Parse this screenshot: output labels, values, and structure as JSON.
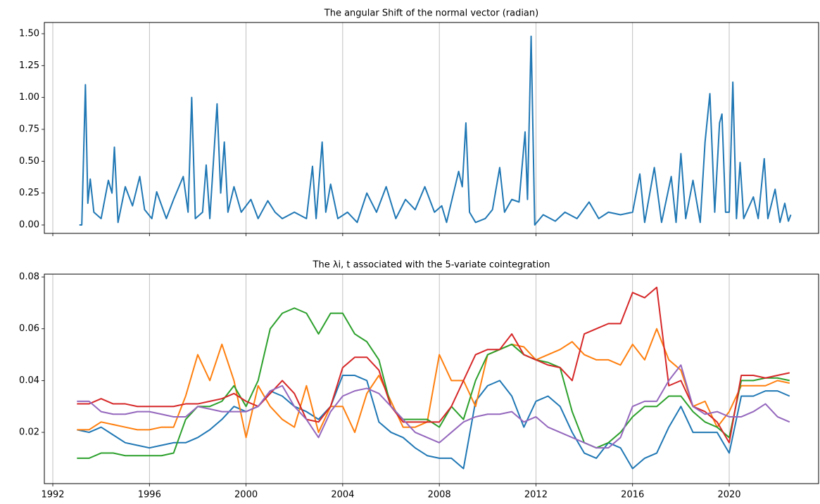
{
  "chart_data": [
    {
      "type": "line",
      "title": "The angular Shift of the normal vector (radian)",
      "x": [
        1993.1,
        1993.2,
        1993.35,
        1993.45,
        1993.55,
        1993.7,
        1994.0,
        1994.3,
        1994.45,
        1994.55,
        1994.7,
        1995.0,
        1995.3,
        1995.6,
        1995.8,
        1996.1,
        1996.3,
        1996.7,
        1997.0,
        1997.4,
        1997.6,
        1997.75,
        1997.9,
        1998.2,
        1998.35,
        1998.5,
        1998.8,
        1998.95,
        1999.1,
        1999.25,
        1999.5,
        1999.8,
        2000.2,
        2000.5,
        2000.9,
        2001.2,
        2001.5,
        2002.0,
        2002.5,
        2002.75,
        2002.9,
        2003.15,
        2003.3,
        2003.5,
        2003.8,
        2004.2,
        2004.6,
        2005.0,
        2005.4,
        2005.8,
        2006.2,
        2006.6,
        2007.0,
        2007.4,
        2007.8,
        2008.1,
        2008.3,
        2008.8,
        2008.95,
        2009.1,
        2009.25,
        2009.5,
        2009.9,
        2010.2,
        2010.5,
        2010.7,
        2011.0,
        2011.3,
        2011.55,
        2011.65,
        2011.8,
        2011.95,
        2012.3,
        2012.8,
        2013.2,
        2013.7,
        2014.2,
        2014.6,
        2015.0,
        2015.5,
        2016.0,
        2016.3,
        2016.5,
        2016.9,
        2017.2,
        2017.6,
        2017.8,
        2018.0,
        2018.2,
        2018.5,
        2018.8,
        2019.0,
        2019.2,
        2019.4,
        2019.6,
        2019.7,
        2019.85,
        2020.0,
        2020.15,
        2020.3,
        2020.45,
        2020.6,
        2021.0,
        2021.2,
        2021.45,
        2021.6,
        2021.9,
        2022.1,
        2022.3,
        2022.45,
        2022.55
      ],
      "series": [
        {
          "color": "#1f77b4",
          "values": [
            0,
            0,
            1.1,
            0.17,
            0.36,
            0.1,
            0.05,
            0.35,
            0.25,
            0.61,
            0.02,
            0.3,
            0.15,
            0.38,
            0.12,
            0.05,
            0.26,
            0.05,
            0.2,
            0.38,
            0.1,
            1.0,
            0.05,
            0.1,
            0.47,
            0.05,
            0.95,
            0.25,
            0.65,
            0.1,
            0.3,
            0.1,
            0.2,
            0.05,
            0.19,
            0.1,
            0.05,
            0.1,
            0.05,
            0.46,
            0.05,
            0.65,
            0.1,
            0.32,
            0.05,
            0.1,
            0.02,
            0.25,
            0.1,
            0.3,
            0.05,
            0.2,
            0.12,
            0.3,
            0.1,
            0.15,
            0.02,
            0.42,
            0.3,
            0.8,
            0.1,
            0.02,
            0.05,
            0.12,
            0.45,
            0.1,
            0.2,
            0.18,
            0.73,
            0.2,
            1.48,
            0.0,
            0.08,
            0.03,
            0.1,
            0.05,
            0.18,
            0.05,
            0.1,
            0.08,
            0.1,
            0.4,
            0.02,
            0.45,
            0.02,
            0.38,
            0.02,
            0.56,
            0.05,
            0.35,
            0.02,
            0.65,
            1.03,
            0.1,
            0.8,
            0.87,
            0.1,
            0.1,
            1.12,
            0.05,
            0.49,
            0.05,
            0.22,
            0.05,
            0.52,
            0.05,
            0.28,
            0.02,
            0.17,
            0.03,
            0.08
          ]
        }
      ],
      "xlim": [
        1991.65,
        2023.7
      ],
      "xticks": [
        1992,
        1996,
        2000,
        2004,
        2008,
        2012,
        2016,
        2020
      ],
      "xtick_labels": false,
      "ylim": [
        -0.066,
        1.588
      ],
      "yticks": [
        {
          "value": 0,
          "label": "0.00"
        },
        {
          "value": 0.25,
          "label": "0.25"
        },
        {
          "value": 0.5,
          "label": "0.50"
        },
        {
          "value": 0.75,
          "label": "0.75"
        },
        {
          "value": 1,
          "label": "1.00"
        },
        {
          "value": 1.25,
          "label": "1.25"
        },
        {
          "value": 1.5,
          "label": "1.50"
        }
      ],
      "grid": "x"
    },
    {
      "type": "line",
      "title": "The λi, t associated with the 5-variate cointegration",
      "x": [
        1993.0,
        1993.5,
        1994.0,
        1994.5,
        1995.0,
        1995.5,
        1996.0,
        1996.5,
        1997.0,
        1997.5,
        1998.0,
        1998.5,
        1999.0,
        1999.5,
        2000.0,
        2000.5,
        2001.0,
        2001.5,
        2002.0,
        2002.5,
        2003.0,
        2003.5,
        2004.0,
        2004.5,
        2005.0,
        2005.5,
        2006.0,
        2006.5,
        2007.0,
        2007.5,
        2008.0,
        2008.5,
        2009.0,
        2009.5,
        2010.0,
        2010.5,
        2011.0,
        2011.5,
        2012.0,
        2012.5,
        2013.0,
        2013.5,
        2014.0,
        2014.5,
        2015.0,
        2015.5,
        2016.0,
        2016.5,
        2017.0,
        2017.5,
        2018.0,
        2018.5,
        2019.0,
        2019.5,
        2020.0,
        2020.5,
        2021.0,
        2021.5,
        2022.0,
        2022.5
      ],
      "series": [
        {
          "color": "#1f77b4",
          "values": [
            0.021,
            0.02,
            0.022,
            0.019,
            0.016,
            0.015,
            0.014,
            0.015,
            0.016,
            0.016,
            0.018,
            0.021,
            0.025,
            0.03,
            0.028,
            0.03,
            0.036,
            0.034,
            0.03,
            0.028,
            0.025,
            0.03,
            0.042,
            0.042,
            0.04,
            0.024,
            0.02,
            0.018,
            0.014,
            0.011,
            0.01,
            0.01,
            0.006,
            0.032,
            0.038,
            0.04,
            0.034,
            0.022,
            0.032,
            0.034,
            0.03,
            0.02,
            0.012,
            0.01,
            0.016,
            0.014,
            0.006,
            0.01,
            0.012,
            0.022,
            0.03,
            0.02,
            0.02,
            0.02,
            0.012,
            0.034,
            0.034,
            0.036,
            0.036,
            0.034
          ]
        },
        {
          "color": "#ff7f0e",
          "values": [
            0.021,
            0.021,
            0.024,
            0.023,
            0.022,
            0.021,
            0.021,
            0.022,
            0.022,
            0.034,
            0.05,
            0.04,
            0.054,
            0.04,
            0.018,
            0.038,
            0.03,
            0.025,
            0.022,
            0.038,
            0.02,
            0.03,
            0.03,
            0.02,
            0.035,
            0.042,
            0.032,
            0.022,
            0.022,
            0.024,
            0.05,
            0.04,
            0.04,
            0.03,
            0.05,
            0.052,
            0.054,
            0.053,
            0.048,
            0.05,
            0.052,
            0.055,
            0.05,
            0.048,
            0.048,
            0.046,
            0.054,
            0.048,
            0.06,
            0.048,
            0.044,
            0.03,
            0.032,
            0.022,
            0.028,
            0.038,
            0.038,
            0.038,
            0.04,
            0.039
          ]
        },
        {
          "color": "#2ca02c",
          "values": [
            0.01,
            0.01,
            0.012,
            0.012,
            0.011,
            0.011,
            0.011,
            0.011,
            0.012,
            0.025,
            0.03,
            0.03,
            0.032,
            0.038,
            0.03,
            0.04,
            0.06,
            0.066,
            0.068,
            0.066,
            0.058,
            0.066,
            0.066,
            0.058,
            0.055,
            0.048,
            0.03,
            0.025,
            0.025,
            0.025,
            0.022,
            0.03,
            0.025,
            0.04,
            0.05,
            0.052,
            0.054,
            0.05,
            0.048,
            0.047,
            0.045,
            0.028,
            0.016,
            0.014,
            0.016,
            0.02,
            0.026,
            0.03,
            0.03,
            0.034,
            0.034,
            0.028,
            0.024,
            0.022,
            0.018,
            0.04,
            0.04,
            0.041,
            0.041,
            0.04
          ]
        },
        {
          "color": "#d62728",
          "values": [
            0.031,
            0.031,
            0.033,
            0.031,
            0.031,
            0.03,
            0.03,
            0.03,
            0.03,
            0.031,
            0.031,
            0.032,
            0.033,
            0.035,
            0.032,
            0.03,
            0.035,
            0.04,
            0.035,
            0.025,
            0.024,
            0.03,
            0.045,
            0.049,
            0.049,
            0.044,
            0.03,
            0.024,
            0.024,
            0.024,
            0.024,
            0.03,
            0.04,
            0.05,
            0.052,
            0.052,
            0.058,
            0.05,
            0.048,
            0.046,
            0.045,
            0.04,
            0.058,
            0.06,
            0.062,
            0.062,
            0.074,
            0.072,
            0.076,
            0.038,
            0.04,
            0.03,
            0.028,
            0.024,
            0.016,
            0.042,
            0.042,
            0.041,
            0.042,
            0.043
          ]
        },
        {
          "color": "#9467bd",
          "values": [
            0.032,
            0.032,
            0.028,
            0.027,
            0.027,
            0.028,
            0.028,
            0.027,
            0.026,
            0.026,
            0.03,
            0.029,
            0.028,
            0.028,
            0.028,
            0.03,
            0.036,
            0.038,
            0.03,
            0.025,
            0.018,
            0.028,
            0.034,
            0.036,
            0.037,
            0.035,
            0.03,
            0.025,
            0.02,
            0.018,
            0.016,
            0.02,
            0.024,
            0.026,
            0.027,
            0.027,
            0.028,
            0.024,
            0.026,
            0.022,
            0.02,
            0.018,
            0.016,
            0.014,
            0.014,
            0.018,
            0.03,
            0.032,
            0.032,
            0.04,
            0.046,
            0.03,
            0.027,
            0.028,
            0.026,
            0.026,
            0.028,
            0.031,
            0.026,
            0.024
          ]
        }
      ],
      "xlim": [
        1991.65,
        2023.7
      ],
      "xticks": [
        1992,
        1996,
        2000,
        2004,
        2008,
        2012,
        2016,
        2020
      ],
      "xtick_labels": true,
      "ylim": [
        0.0002,
        0.0811
      ],
      "yticks": [
        0.02,
        0.04,
        0.06,
        0.08
      ],
      "grid": "x"
    }
  ]
}
